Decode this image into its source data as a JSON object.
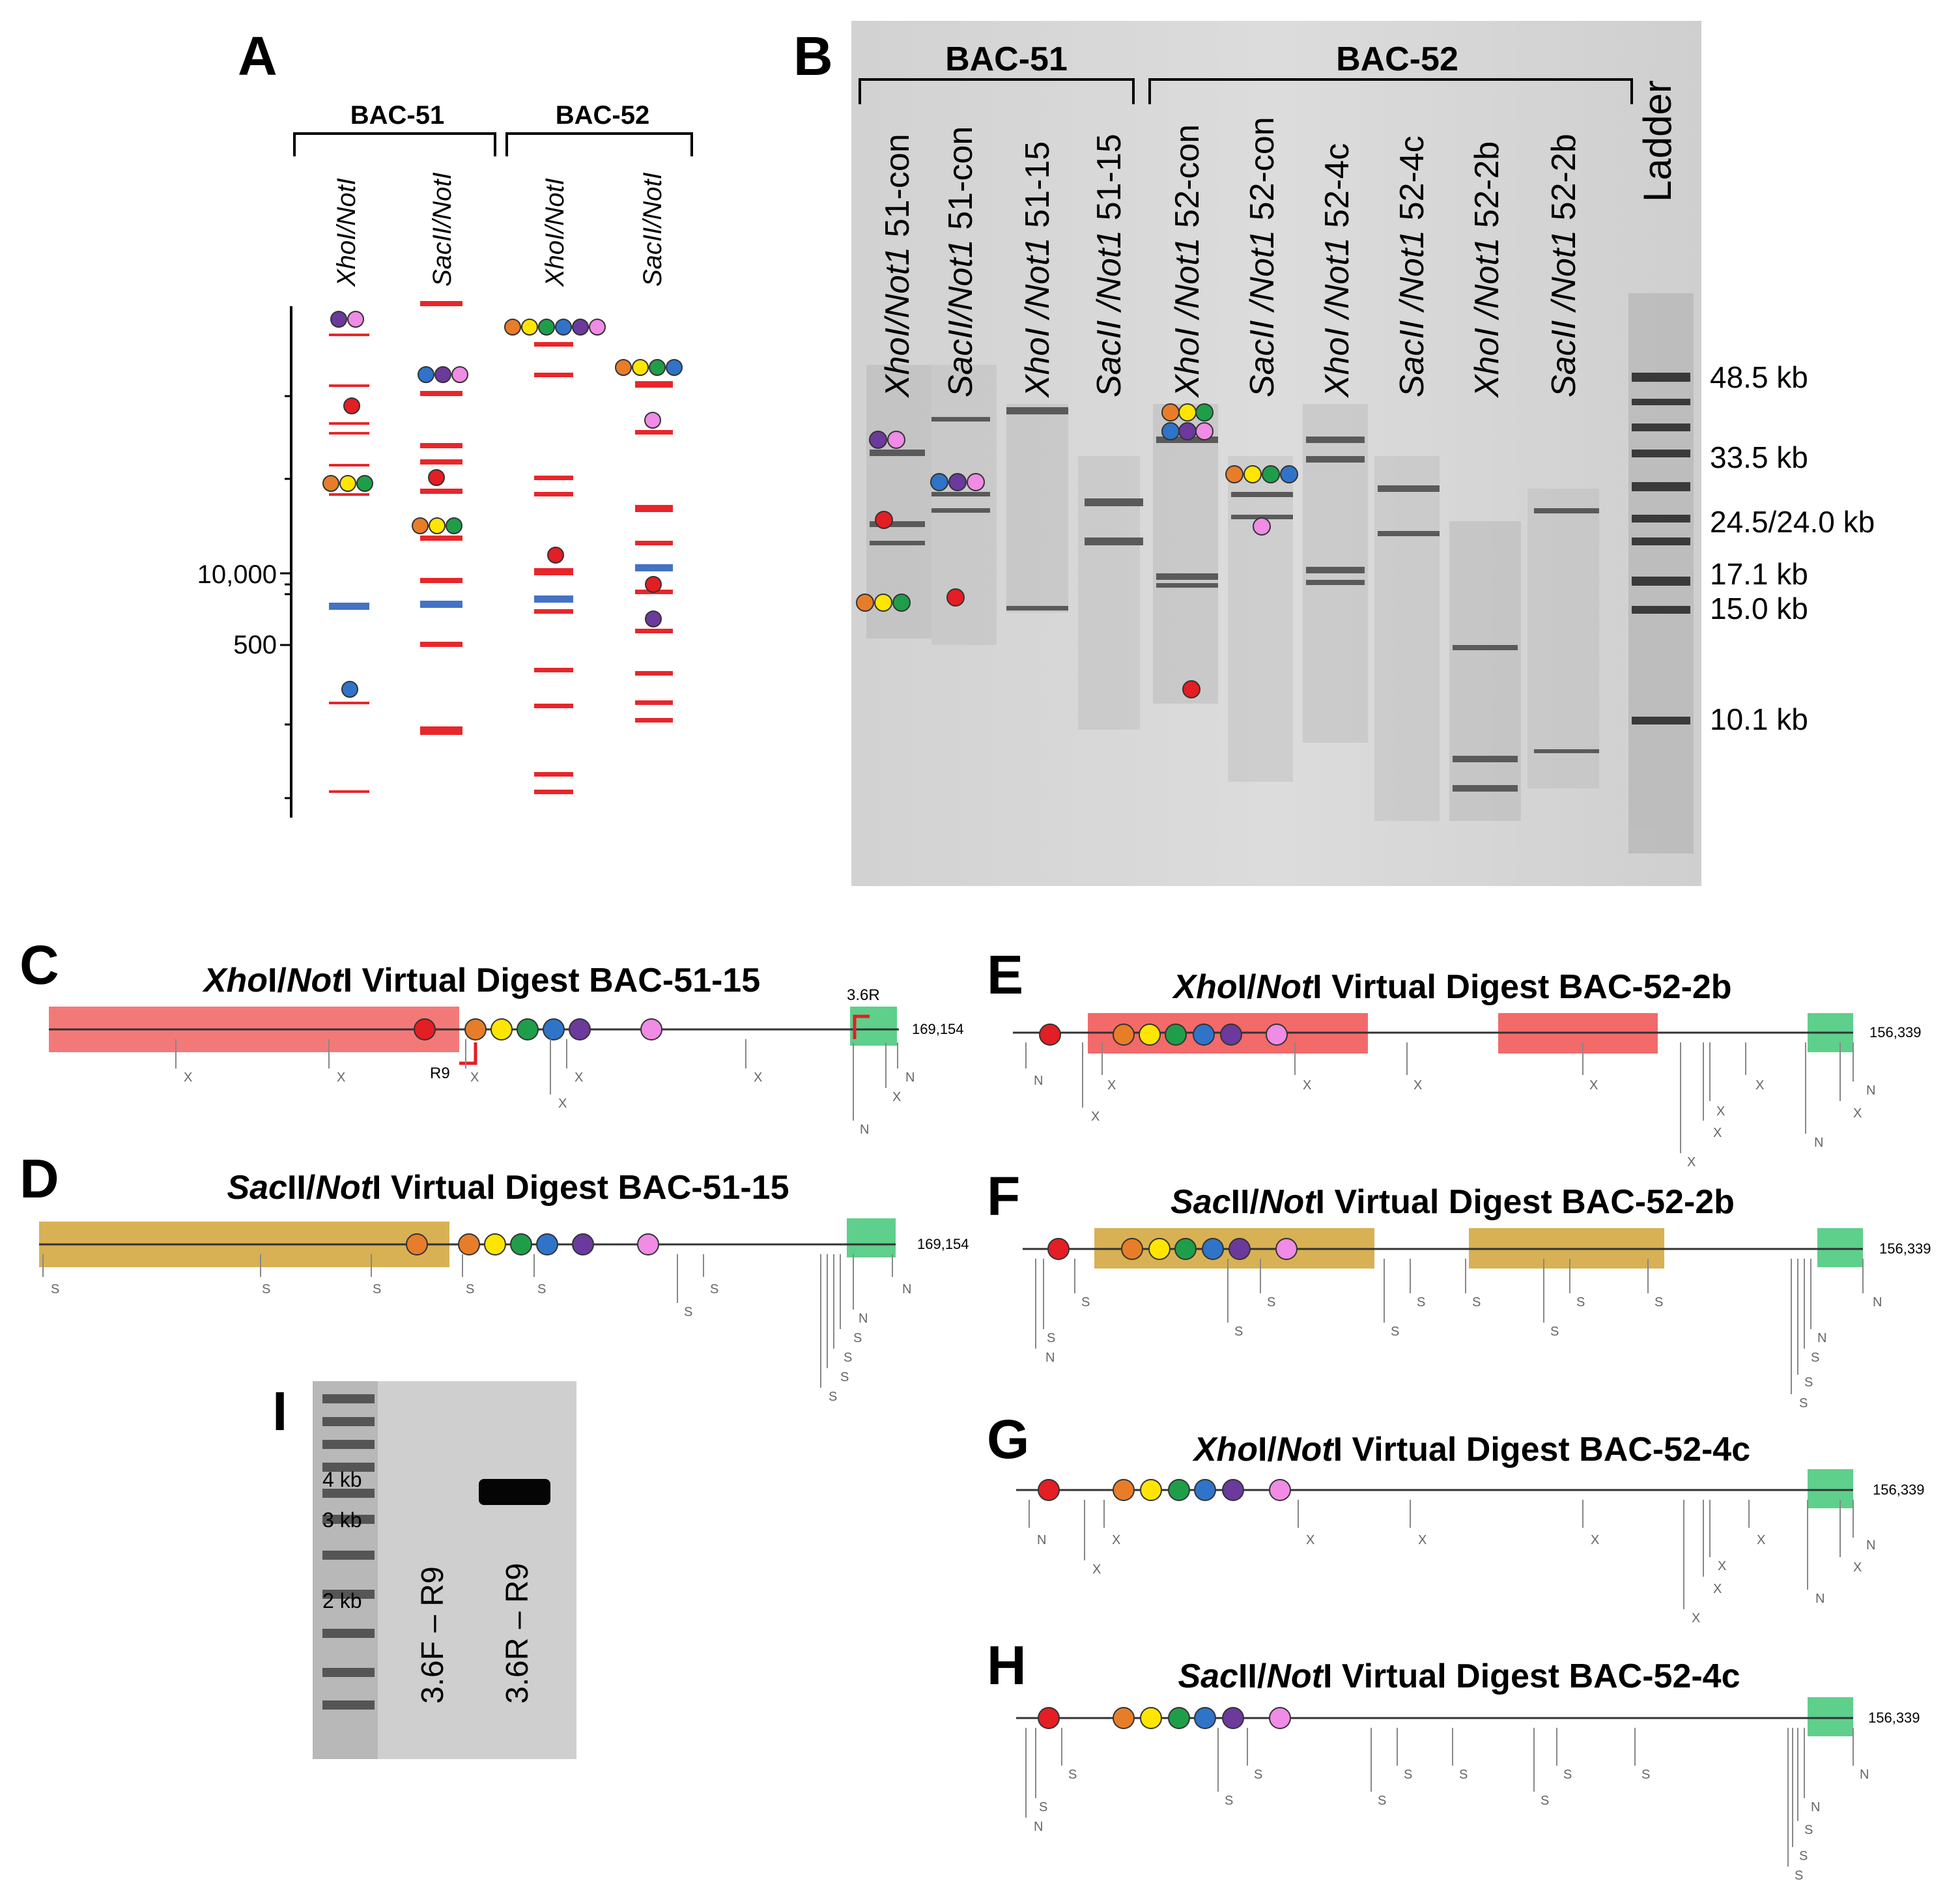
{
  "panels": {
    "a": "A",
    "b": "B",
    "c": "C",
    "d": "D",
    "e": "E",
    "f": "F",
    "g": "G",
    "h": "H",
    "i": "I"
  },
  "panel_a": {
    "groups": [
      "BAC-51",
      "BAC-52"
    ],
    "lanes": [
      "XhoI/NotI",
      "SacII/NotI",
      "XhoI/NotI",
      "SacII/NotI"
    ],
    "axis_ticks": [
      "10,000",
      "500"
    ]
  },
  "panel_b": {
    "groups": [
      "BAC-51",
      "BAC-52"
    ],
    "lanes": [
      {
        "enz": "XhoI/Not1",
        "clone": " 51-con"
      },
      {
        "enz": "SacII/Not1",
        "clone": " 51-con"
      },
      {
        "enz": "XhoI /Not1",
        "clone": " 51-15"
      },
      {
        "enz": "SacII /Not1",
        "clone": " 51-15"
      },
      {
        "enz": "XhoI /Not1",
        "clone": " 52-con"
      },
      {
        "enz": "SacII /Not1",
        "clone": " 52-con"
      },
      {
        "enz": "XhoI /Not1",
        "clone": " 52-4c"
      },
      {
        "enz": "SacII /Not1",
        "clone": " 52-4c"
      },
      {
        "enz": "XhoI /Not1",
        "clone": " 52-2b"
      },
      {
        "enz": "SacII /Not1",
        "clone": " 52-2b"
      }
    ],
    "ladder_label": "Ladder",
    "ladder_sizes": [
      "48.5 kb",
      "33.5 kb",
      "24.5/24.0 kb",
      "17.1 kb",
      "15.0 kb",
      "10.1 kb"
    ]
  },
  "virtual_digests": {
    "c": {
      "enz1": "Xho",
      "enz2": "Not",
      "rest": "I Virtual Digest BAC-51-15",
      "length": "169,154",
      "primer_f": "3.6R",
      "primer_r": "R9"
    },
    "d": {
      "enz1": "Sac",
      "enz2": "Not",
      "rest": "I Virtual Digest BAC-51-15",
      "length": "169,154"
    },
    "e": {
      "enz1": "Xho",
      "enz2": "Not",
      "rest": "I Virtual Digest BAC-52-2b",
      "length": "156,339"
    },
    "f": {
      "enz1": "Sac",
      "enz2": "Not",
      "rest": "I Virtual Digest BAC-52-2b",
      "length": "156,339"
    },
    "g": {
      "enz1": "Xho",
      "enz2": "Not",
      "rest": "I Virtual Digest BAC-52-4c",
      "length": "156,339"
    },
    "h": {
      "enz1": "Sac",
      "enz2": "Not",
      "rest": "I Virtual Digest BAC-52-4c",
      "length": "156,339"
    },
    "site_letters": {
      "x": "X",
      "n": "N",
      "s": "S"
    }
  },
  "panel_i": {
    "marker_labels": [
      "4 kb",
      "3 kb",
      "2 kb"
    ],
    "lanes": [
      "3.6F – R9",
      "3.6R – R9"
    ]
  },
  "colors": {
    "red": "#e31e24",
    "orange": "#e87d29",
    "yellow": "#ffe600",
    "green": "#1f9e4a",
    "blue": "#2f74c9",
    "purple": "#6b3a9c",
    "pink": "#f08be6",
    "band_red": "#e8262a",
    "band_blue": "#4472c4",
    "highlight_red": "#f26a6a",
    "highlight_gold": "#d8b154",
    "highlight_green": "#5fcf8c"
  }
}
